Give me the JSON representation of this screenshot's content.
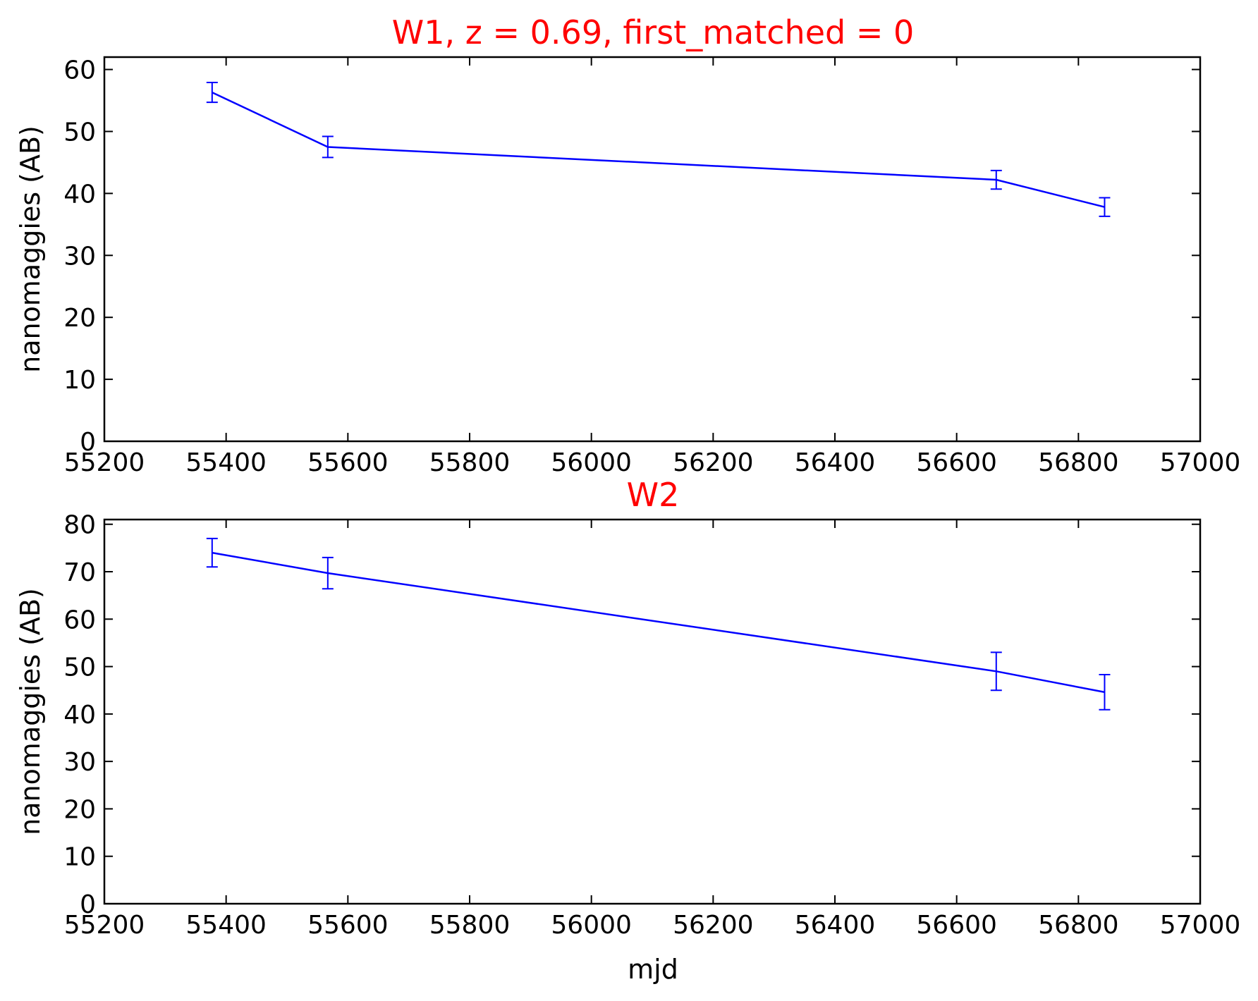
{
  "chart_data": [
    {
      "type": "line",
      "title": "W1, z = 0.69, first_matched = 0",
      "title_color": "#ff0000",
      "xlabel": "",
      "ylabel": "nanomaggies (AB)",
      "xlim": [
        55200,
        57000
      ],
      "ylim": [
        0,
        62
      ],
      "xticks": [
        55200,
        55400,
        55600,
        55800,
        56000,
        56200,
        56400,
        56600,
        56800,
        57000
      ],
      "yticks": [
        0,
        10,
        20,
        30,
        40,
        50,
        60
      ],
      "grid": false,
      "legend": "none",
      "series": [
        {
          "color": "#0000ff",
          "x": [
            55377,
            55567,
            56665,
            56843
          ],
          "y": [
            56.3,
            47.5,
            42.2,
            37.8
          ],
          "yerr": [
            1.6,
            1.7,
            1.5,
            1.5
          ]
        }
      ]
    },
    {
      "type": "line",
      "title": "W2",
      "title_color": "#ff0000",
      "xlabel": "mjd",
      "ylabel": "nanomaggies (AB)",
      "xlim": [
        55200,
        57000
      ],
      "ylim": [
        0,
        81
      ],
      "xticks": [
        55200,
        55400,
        55600,
        55800,
        56000,
        56200,
        56400,
        56600,
        56800,
        57000
      ],
      "yticks": [
        0,
        10,
        20,
        30,
        40,
        50,
        60,
        70,
        80
      ],
      "grid": false,
      "legend": "none",
      "series": [
        {
          "color": "#0000ff",
          "x": [
            55377,
            55567,
            56665,
            56843
          ],
          "y": [
            74.0,
            69.7,
            49.0,
            44.6
          ],
          "yerr": [
            3.0,
            3.3,
            4.0,
            3.7
          ]
        }
      ]
    }
  ]
}
